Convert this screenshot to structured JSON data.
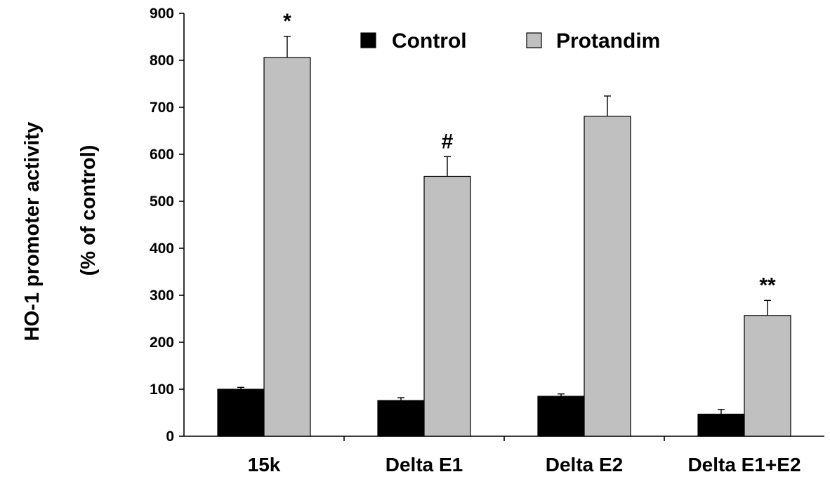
{
  "chart_data": {
    "type": "bar",
    "title": "",
    "xlabel": "",
    "ylabel_line1": "HO-1 promoter activity",
    "ylabel_line2": "(% of control)",
    "ylim": [
      0,
      900
    ],
    "yticks": [
      0,
      100,
      200,
      300,
      400,
      500,
      600,
      700,
      800,
      900
    ],
    "categories": [
      "15k",
      "Delta E1",
      "Delta E2",
      "Delta E1+E2"
    ],
    "series": [
      {
        "name": "Control",
        "color": "#000000",
        "values": [
          100,
          76,
          85,
          47
        ],
        "errors": [
          4,
          6,
          5,
          10
        ]
      },
      {
        "name": "Protandim",
        "color": "#c0c0c0",
        "values": [
          806,
          553,
          681,
          257
        ],
        "errors": [
          45,
          42,
          43,
          32
        ]
      }
    ],
    "annotations": [
      "*",
      "#",
      "",
      "**"
    ],
    "legend_position": "top-center",
    "grid": false
  }
}
